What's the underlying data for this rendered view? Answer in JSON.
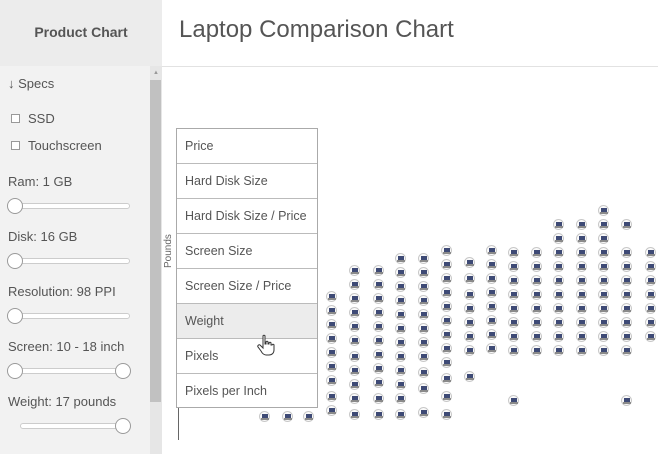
{
  "app": {
    "brand": "Product Chart",
    "title": "Laptop Comparison Chart"
  },
  "sidebar": {
    "specs_heading": "↓ Specs",
    "checkboxes": [
      {
        "label": "SSD",
        "checked": false
      },
      {
        "label": "Touchscreen",
        "checked": false
      }
    ],
    "filters": [
      {
        "label": "Ram: 1 GB",
        "type": "single",
        "value_fraction": 0
      },
      {
        "label": "Disk: 16 GB",
        "type": "single",
        "value_fraction": 0
      },
      {
        "label": "Resolution: 98 PPI",
        "type": "single",
        "value_fraction": 0
      },
      {
        "label": "Screen: 10 - 18 inch",
        "type": "range",
        "low_fraction": 0,
        "high_fraction": 1
      },
      {
        "label": "Weight: 17 pounds",
        "type": "single",
        "value_fraction": 1
      }
    ]
  },
  "chart": {
    "axis_label": "Pounds",
    "axis_dropdown": {
      "options": [
        "Price",
        "Hard Disk Size",
        "Hard Disk Size / Price",
        "Screen Size",
        "Screen Size / Price",
        "Weight",
        "Pixels",
        "Pixels per Inch"
      ],
      "hovered_option": "Weight"
    }
  },
  "colors": {
    "sidebar_bg": "#f2f2f2",
    "text": "#555555",
    "hover_bg": "#ececec",
    "laptop_screen": "#3e4a75"
  },
  "icons": {
    "scroll_up": "triangle-up-icon",
    "cursor": "hand-pointer-icon",
    "product": "laptop-icon"
  }
}
